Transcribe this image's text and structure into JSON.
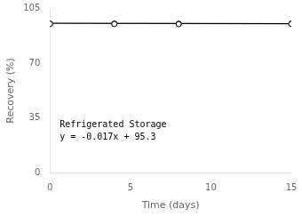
{
  "chart_data": {
    "type": "scatter",
    "xlabel": "Time (days)",
    "ylabel": "Recovery (%)",
    "annotations": [
      "Refrigerated Storage",
      "y = -0.017x + 95.3"
    ],
    "series": [
      {
        "type": "line",
        "color": "#000000",
        "x": [
          0,
          15
        ],
        "values": [
          95.3,
          95.045
        ]
      },
      {
        "type": "scatter",
        "marker": "circle",
        "color": "#000000",
        "x": [
          0,
          0,
          4,
          4,
          8,
          8,
          15,
          15
        ],
        "values": [
          95.1,
          94.9,
          95.1,
          94.85,
          95.0,
          94.75,
          95.1,
          94.9
        ]
      }
    ],
    "xlim": [
      0,
      15
    ],
    "xticks": [
      0,
      5,
      10,
      15
    ],
    "ylim": [
      0,
      105
    ],
    "yticks": [
      0,
      35,
      70,
      105
    ],
    "grid": false
  }
}
